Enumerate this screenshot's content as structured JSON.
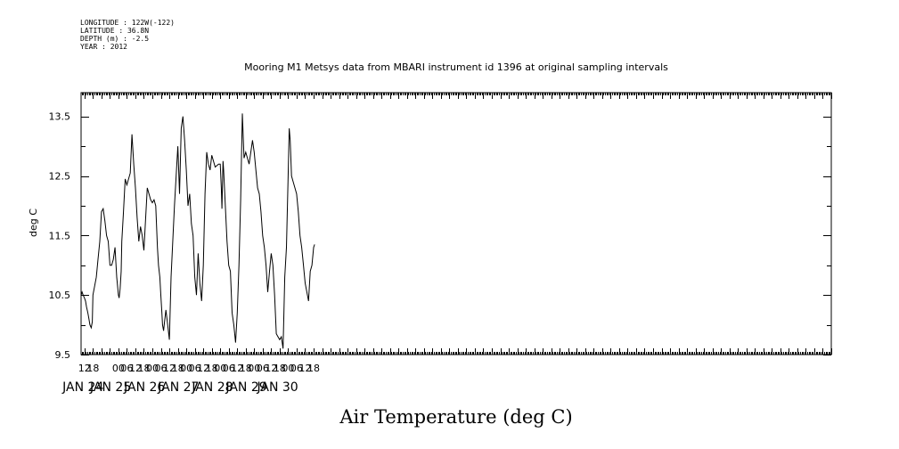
{
  "header": {
    "lines": [
      "LONGITUDE : 122W(-122)",
      "LATITUDE : 36.8N",
      "DEPTH (m) : -2.5",
      "YEAR : 2012"
    ]
  },
  "chart_data": {
    "type": "line",
    "title": "Mooring M1 Metsys data from MBARI instrument id 1396 at original sampling intervals",
    "xlabel": "Air Temperature (deg C)",
    "ylabel": "deg C",
    "xlim": [
      8.9,
      31.0
    ],
    "ylim": [
      9.5,
      13.9
    ],
    "yticks": [
      9.5,
      10.5,
      11.5,
      12.5,
      13.5
    ],
    "hour_ticks": [
      {
        "x": 9.0,
        "label": "12"
      },
      {
        "x": 9.25,
        "label": "18"
      },
      {
        "x": 10.0,
        "label": "00"
      },
      {
        "x": 10.25,
        "label": "06"
      },
      {
        "x": 10.5,
        "label": "12"
      },
      {
        "x": 10.75,
        "label": "18"
      },
      {
        "x": 11.0,
        "label": "00"
      },
      {
        "x": 11.25,
        "label": "06"
      },
      {
        "x": 11.5,
        "label": "12"
      },
      {
        "x": 11.75,
        "label": "18"
      },
      {
        "x": 12.0,
        "label": "00"
      },
      {
        "x": 12.25,
        "label": "06"
      },
      {
        "x": 12.5,
        "label": "12"
      },
      {
        "x": 12.75,
        "label": "18"
      },
      {
        "x": 13.0,
        "label": "00"
      },
      {
        "x": 13.25,
        "label": "06"
      },
      {
        "x": 13.5,
        "label": "12"
      },
      {
        "x": 13.75,
        "label": "18"
      },
      {
        "x": 14.0,
        "label": "00"
      },
      {
        "x": 14.25,
        "label": "06"
      },
      {
        "x": 14.5,
        "label": "12"
      },
      {
        "x": 14.75,
        "label": "18"
      },
      {
        "x": 15.0,
        "label": "00"
      },
      {
        "x": 15.25,
        "label": "06"
      },
      {
        "x": 15.5,
        "label": "12"
      },
      {
        "x": 15.75,
        "label": "18"
      }
    ],
    "day_labels": [
      {
        "x": 8.96,
        "label": "JAN 24"
      },
      {
        "x": 9.77,
        "label": "JAN 25"
      },
      {
        "x": 10.77,
        "label": "JAN 26"
      },
      {
        "x": 11.77,
        "label": "JAN 27"
      },
      {
        "x": 12.77,
        "label": "JAN 28"
      },
      {
        "x": 13.77,
        "label": "JAN 29"
      },
      {
        "x": 14.69,
        "label": "JAN 30"
      }
    ],
    "series": [
      {
        "x": [
          8.9,
          8.93,
          8.96,
          9.0,
          9.03,
          9.06,
          9.1,
          9.13,
          9.16,
          9.2,
          9.23,
          9.25,
          9.3,
          9.35,
          9.4,
          9.45,
          9.5,
          9.55,
          9.6,
          9.65,
          9.7,
          9.75,
          9.8,
          9.85,
          9.9,
          9.95,
          10.0,
          10.02,
          10.05,
          10.08,
          10.1,
          10.15,
          10.2,
          10.25,
          10.3,
          10.35,
          10.4,
          10.45,
          10.5,
          10.55,
          10.6,
          10.65,
          10.7,
          10.75,
          10.85,
          10.95,
          11.0,
          11.05,
          11.1,
          11.15,
          11.18,
          11.22,
          11.25,
          11.28,
          11.3,
          11.33,
          11.35,
          11.4,
          11.45,
          11.5,
          11.55,
          11.6,
          11.65,
          11.7,
          11.75,
          11.8,
          11.85,
          11.9,
          11.95,
          12.0,
          12.05,
          12.1,
          12.15,
          12.2,
          12.25,
          12.3,
          12.35,
          12.4,
          12.45,
          12.5,
          12.55,
          12.6,
          12.65,
          12.7,
          12.75,
          12.85,
          12.95,
          13.0,
          13.03,
          13.05,
          13.08,
          13.1,
          13.15,
          13.2,
          13.25,
          13.3,
          13.35,
          13.4,
          13.45,
          13.5,
          13.55,
          13.6,
          13.65,
          13.7,
          13.75,
          13.85,
          13.95,
          14.0,
          14.05,
          14.1,
          14.15,
          14.2,
          14.25,
          14.3,
          14.35,
          14.4,
          14.45,
          14.5,
          14.55,
          14.6,
          14.65,
          14.7,
          14.75,
          14.8,
          14.85,
          14.9,
          14.95,
          15.0,
          15.03,
          15.06,
          15.1,
          15.15,
          15.2,
          15.25,
          15.3,
          15.35,
          15.4,
          15.45,
          15.5,
          15.55,
          15.6,
          15.65,
          15.7,
          15.75,
          15.78
        ],
        "y": [
          10.5,
          10.55,
          10.5,
          10.45,
          10.4,
          10.3,
          10.2,
          10.1,
          10.0,
          9.95,
          10.05,
          10.5,
          10.65,
          10.8,
          11.1,
          11.4,
          11.9,
          11.95,
          11.75,
          11.5,
          11.4,
          11.0,
          11.0,
          11.1,
          11.3,
          10.8,
          10.5,
          10.45,
          10.6,
          10.9,
          11.4,
          11.9,
          12.45,
          12.35,
          12.45,
          12.55,
          13.2,
          12.7,
          12.3,
          11.8,
          11.4,
          11.65,
          11.5,
          11.25,
          12.3,
          12.1,
          12.05,
          12.1,
          12.0,
          11.3,
          11.0,
          10.8,
          10.5,
          10.2,
          10.0,
          9.9,
          10.0,
          10.25,
          10.0,
          9.75,
          10.8,
          11.4,
          12.0,
          12.5,
          13.0,
          12.2,
          13.3,
          13.5,
          13.1,
          12.6,
          12.0,
          12.2,
          11.7,
          11.5,
          10.8,
          10.5,
          11.2,
          10.7,
          10.4,
          11.0,
          12.2,
          12.9,
          12.7,
          12.6,
          12.85,
          12.65,
          12.7,
          12.7,
          12.3,
          11.95,
          12.75,
          12.6,
          12.0,
          11.4,
          11.0,
          10.9,
          10.2,
          10.0,
          9.7,
          10.2,
          11.0,
          12.1,
          13.55,
          12.8,
          12.9,
          12.7,
          13.1,
          12.9,
          12.6,
          12.3,
          12.2,
          11.9,
          11.5,
          11.3,
          11.0,
          10.55,
          10.9,
          11.2,
          11.0,
          10.5,
          9.85,
          9.8,
          9.75,
          9.8,
          9.6,
          10.8,
          11.3,
          12.5,
          13.3,
          13.1,
          12.5,
          12.4,
          12.3,
          12.2,
          11.9,
          11.5,
          11.3,
          11.0,
          10.7,
          10.55,
          10.4,
          10.9,
          11.0,
          11.3,
          11.35
        ]
      }
    ]
  }
}
